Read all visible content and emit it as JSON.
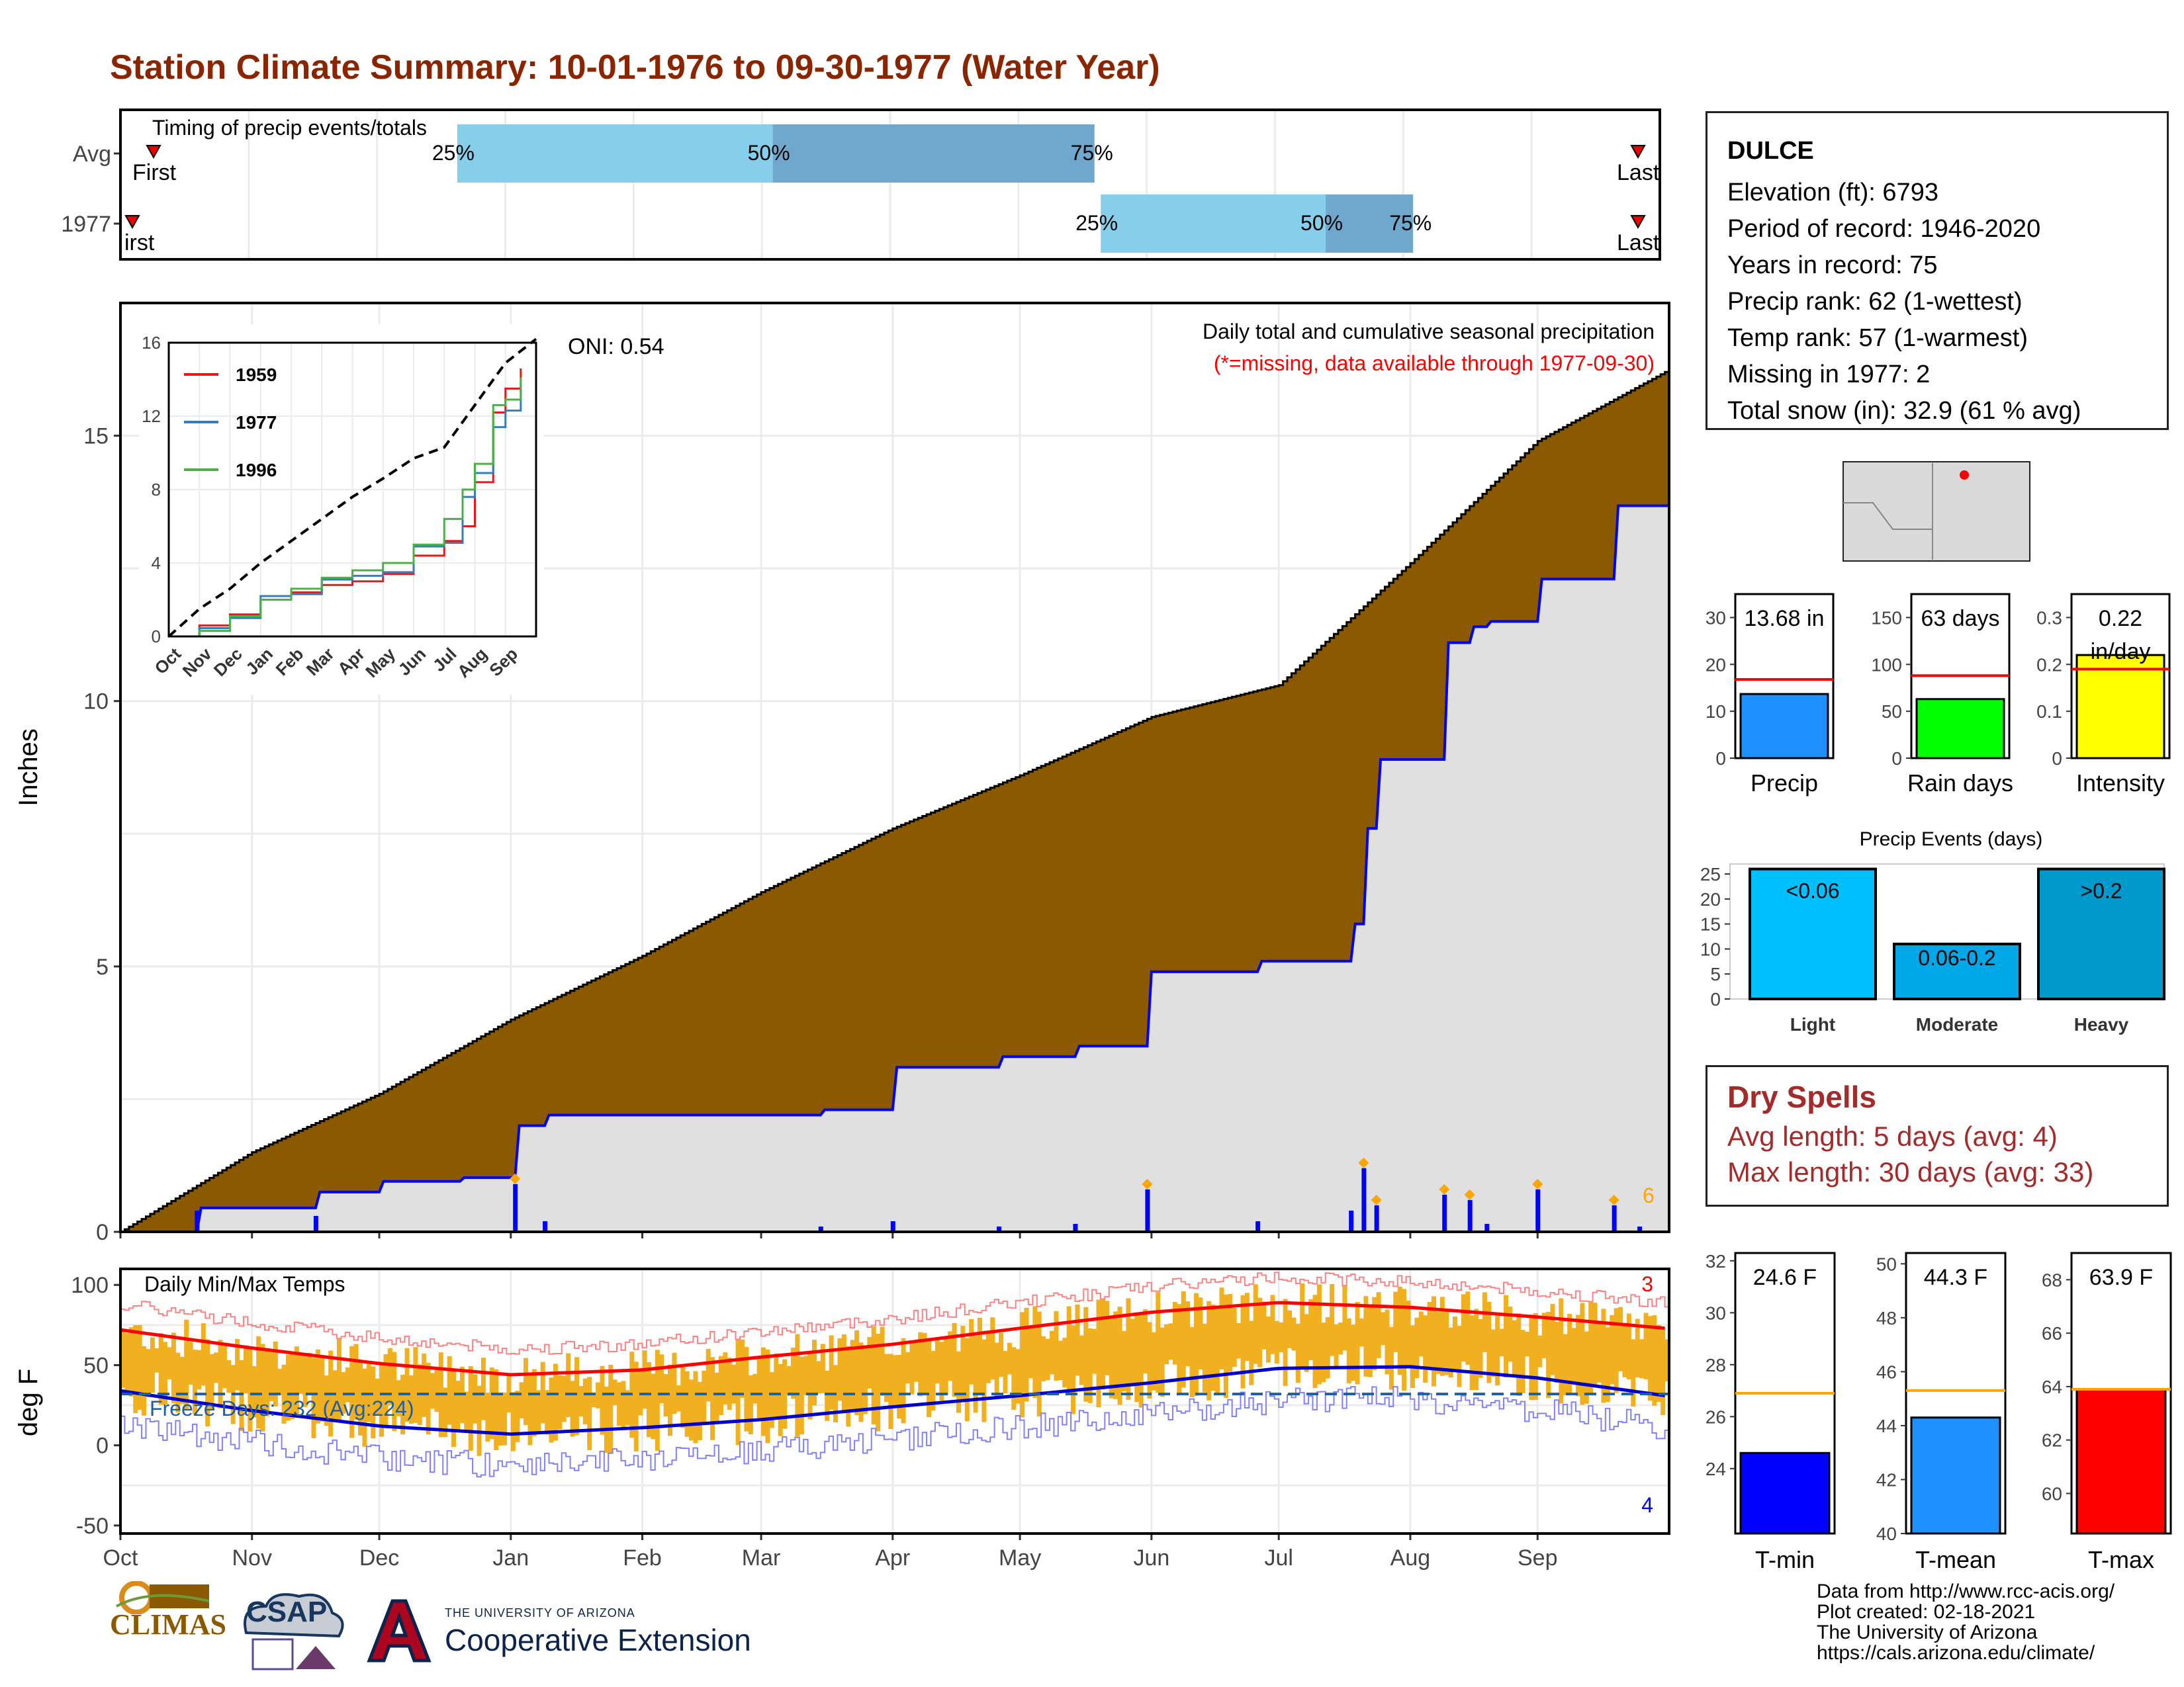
{
  "title": "Station Climate Summary: 10-01-1976 to 09-30-1977 (Water Year)",
  "colors": {
    "title": "#8b2500",
    "cum_avg_fill": "#8B5A00",
    "cum_year_fill": "#e0e0e0",
    "cum_year_line": "#0000ff",
    "daily_bar": "#0000ff",
    "temp_bar": "#f0b020",
    "tmax_avg": "#ff0000",
    "tmin_avg": "#0000cc",
    "timing_light": "#87CEEB",
    "timing_dark": "#6fa8cc",
    "dry_text": "#a52a2a"
  },
  "station": {
    "name": "DULCE",
    "elevation": "Elevation (ft): 6793",
    "period": "Period of record: 1946-2020",
    "years": "Years in record: 75",
    "precip_rank": "Precip rank: 62 (1-wettest)",
    "temp_rank": "Temp rank: 57 (1-warmest)",
    "missing": "Missing in 1977: 2",
    "snow": "Total snow (in): 32.9 (61 % avg)"
  },
  "dry_spells": {
    "title": "Dry Spells",
    "avg": "Avg length: 5 days (avg: 4)",
    "max": "Max length: 30 days (avg: 33)"
  },
  "credits": [
    "Data from http://www.rcc-acis.org/",
    "Plot created: 02-18-2021",
    "The University of Arizona",
    "https://cals.arizona.edu/climate/"
  ],
  "logos": {
    "climas": "CLIMAS",
    "csap": "CSAP",
    "ua_small": "THE UNIVERSITY OF ARIZONA",
    "ua_big": "Cooperative Extension"
  },
  "chart_data": [
    {
      "id": "timing",
      "type": "bar",
      "title": "Timing of precip events/totals",
      "categories": [
        "Avg",
        "1977"
      ],
      "rows": [
        {
          "label": "Avg",
          "first": 0.08,
          "p25": 1.04,
          "p50": 2.05,
          "p75": 3.08,
          "last": 3.95
        },
        {
          "label": "1977",
          "first": 0.0,
          "p25": 3.1,
          "p50": 3.82,
          "p75": 4.1,
          "last": 3.95
        }
      ],
      "marker_labels": {
        "first": "First",
        "first_1977": "irst",
        "last": "Last",
        "p25": "25%",
        "p50": "50%",
        "p75": "75%"
      }
    },
    {
      "id": "cumulative",
      "type": "area",
      "ylabel": "Inches",
      "ylim": [
        0,
        17.5
      ],
      "yticks": [
        0,
        5,
        10,
        15
      ],
      "months": [
        "Oct",
        "Nov",
        "Dec",
        "Jan",
        "Feb",
        "Mar",
        "Apr",
        "May",
        "Jun",
        "Jul",
        "Aug",
        "Sep"
      ],
      "annotation_title": "Daily total and cumulative seasonal precipitation",
      "annotation_missing": "(*=missing, data available through 1977-09-30)",
      "oni": "ONI: 0.54",
      "corner_label": "6",
      "avg_cumulative": {
        "day": [
          0,
          31,
          61,
          92,
          123,
          151,
          182,
          212,
          243,
          273,
          304,
          334,
          364
        ],
        "value": [
          0,
          1.5,
          2.6,
          4.0,
          5.2,
          6.4,
          7.6,
          8.6,
          9.7,
          10.3,
          12.6,
          14.9,
          16.2
        ]
      },
      "year_cumulative": {
        "day": [
          0,
          18,
          19,
          46,
          47,
          61,
          62,
          80,
          81,
          93,
          94,
          100,
          101,
          165,
          166,
          182,
          183,
          207,
          208,
          225,
          226,
          242,
          243,
          268,
          269,
          290,
          291,
          293,
          294,
          296,
          297,
          312,
          313,
          318,
          319,
          322,
          323,
          334,
          335,
          352,
          353,
          364
        ],
        "value": [
          0,
          0,
          0.45,
          0.45,
          0.75,
          0.75,
          0.95,
          0.95,
          1.02,
          1.02,
          2.0,
          2.0,
          2.2,
          2.2,
          2.3,
          2.3,
          3.1,
          3.1,
          3.3,
          3.3,
          3.5,
          3.5,
          4.9,
          4.9,
          5.1,
          5.1,
          5.8,
          5.8,
          7.6,
          7.6,
          8.9,
          8.9,
          11.1,
          11.1,
          11.4,
          11.4,
          11.5,
          11.5,
          12.3,
          12.3,
          13.68,
          13.68
        ]
      },
      "daily": [
        {
          "day": 18,
          "value": 0.4
        },
        {
          "day": 46,
          "value": 0.3
        },
        {
          "day": 93,
          "value": 0.9
        },
        {
          "day": 100,
          "value": 0.2
        },
        {
          "day": 165,
          "value": 0.1
        },
        {
          "day": 182,
          "value": 0.2
        },
        {
          "day": 207,
          "value": 0.1
        },
        {
          "day": 225,
          "value": 0.15
        },
        {
          "day": 242,
          "value": 0.8
        },
        {
          "day": 268,
          "value": 0.2
        },
        {
          "day": 290,
          "value": 0.4
        },
        {
          "day": 293,
          "value": 1.2
        },
        {
          "day": 296,
          "value": 0.5
        },
        {
          "day": 312,
          "value": 0.7
        },
        {
          "day": 318,
          "value": 0.6
        },
        {
          "day": 322,
          "value": 0.15
        },
        {
          "day": 334,
          "value": 0.8
        },
        {
          "day": 352,
          "value": 0.5
        },
        {
          "day": 358,
          "value": 0.1
        }
      ]
    },
    {
      "id": "inset",
      "type": "line",
      "ylim": [
        0,
        16
      ],
      "yticks": [
        0,
        4,
        8,
        12,
        16
      ],
      "months": [
        "Oct",
        "Nov",
        "Dec",
        "Jan",
        "Feb",
        "Mar",
        "Apr",
        "May",
        "Jun",
        "Jul",
        "Aug",
        "Sep"
      ],
      "series": [
        {
          "name": "1959",
          "color": "#e41a1c",
          "x": [
            0,
            1,
            2,
            3,
            4,
            5,
            6,
            7,
            8,
            9,
            9.6,
            10,
            10.6,
            11,
            11.5
          ],
          "y": [
            0,
            0.6,
            1.2,
            2.0,
            2.4,
            2.8,
            3.0,
            3.4,
            4.4,
            5.2,
            6.0,
            8.4,
            12.2,
            13.5,
            14.6
          ]
        },
        {
          "name": "1977",
          "color": "#377eb8",
          "x": [
            0,
            1,
            2,
            3,
            4,
            5,
            6,
            7,
            8,
            9,
            9.6,
            10,
            10.6,
            11,
            11.5
          ],
          "y": [
            0,
            0.45,
            1.0,
            2.2,
            2.3,
            3.1,
            3.3,
            3.5,
            4.9,
            5.1,
            7.6,
            8.9,
            11.4,
            12.3,
            13.7
          ]
        },
        {
          "name": "1996",
          "color": "#4daf4a",
          "x": [
            0,
            1,
            2,
            3,
            4,
            5,
            6,
            7,
            8,
            9,
            9.6,
            10,
            10.6,
            11,
            11.5
          ],
          "y": [
            0,
            0.3,
            1.1,
            2.0,
            2.6,
            3.2,
            3.6,
            4.0,
            5.0,
            6.4,
            8.0,
            9.4,
            12.6,
            12.9,
            14.1
          ]
        },
        {
          "name": "avg",
          "color": "#000000",
          "dashed": true,
          "x": [
            0,
            1,
            2,
            3,
            4,
            5,
            6,
            7,
            8,
            9,
            10,
            11,
            12
          ],
          "y": [
            0,
            1.5,
            2.6,
            4.0,
            5.2,
            6.4,
            7.6,
            8.6,
            9.7,
            10.3,
            12.6,
            14.9,
            16.2
          ]
        }
      ]
    },
    {
      "id": "temps",
      "type": "bar",
      "title": "Daily Min/Max Temps",
      "ylabel": "deg F",
      "ylim": [
        -55,
        110
      ],
      "yticks": [
        -50,
        0,
        50,
        100
      ],
      "months": [
        "Oct",
        "Nov",
        "Dec",
        "Jan",
        "Feb",
        "Mar",
        "Apr",
        "May",
        "Jun",
        "Jul",
        "Aug",
        "Sep"
      ],
      "freeze_label": "Freeze Days: 232 (Avg:224)",
      "freeze_line": 32,
      "top_right_label": "3",
      "bottom_right_label": "4",
      "tmax_avg_anchor": {
        "day": [
          0,
          30,
          61,
          92,
          123,
          151,
          182,
          212,
          243,
          273,
          304,
          334,
          364
        ],
        "value": [
          72,
          61,
          51,
          44,
          47,
          55,
          63,
          73,
          83,
          89,
          86,
          80,
          73
        ]
      },
      "tmin_avg_anchor": {
        "day": [
          0,
          30,
          61,
          92,
          123,
          151,
          182,
          212,
          243,
          273,
          304,
          334,
          364
        ],
        "value": [
          34,
          22,
          12,
          7,
          11,
          16,
          24,
          31,
          39,
          48,
          49,
          42,
          31
        ]
      }
    },
    {
      "id": "precip_summary",
      "type": "bar",
      "panels": [
        {
          "label": "Precip",
          "value_label": "13.68 in",
          "value": 13.68,
          "avg": 16.8,
          "ylim": [
            0,
            35
          ],
          "yticks": [
            0,
            10,
            20,
            30
          ],
          "color": "#1e90ff"
        },
        {
          "label": "Rain days",
          "value_label": "63 days",
          "value": 63,
          "avg": 88,
          "ylim": [
            0,
            175
          ],
          "yticks": [
            0,
            50,
            100,
            150
          ],
          "color": "#00ff00"
        },
        {
          "label": "Intensity",
          "value_label": "0.22",
          "value_label2": "in/day",
          "value": 0.22,
          "avg": 0.19,
          "ylim": [
            0,
            0.35
          ],
          "yticks": [
            0.0,
            0.1,
            0.2,
            0.3
          ],
          "color": "#ffff00"
        }
      ]
    },
    {
      "id": "precip_events",
      "type": "bar",
      "title": "Precip Events (days)",
      "categories": [
        "Light",
        "Moderate",
        "Heavy"
      ],
      "bar_labels": [
        "<0.06",
        "0.06-0.2",
        ">0.2"
      ],
      "values": [
        26,
        11,
        26
      ],
      "ylim": [
        0,
        27
      ],
      "yticks": [
        0,
        5,
        10,
        15,
        20,
        25
      ],
      "colors": [
        "#00bfff",
        "#00a8e8",
        "#0099cc"
      ]
    },
    {
      "id": "temp_summary",
      "type": "bar",
      "panels": [
        {
          "label": "T-min",
          "value_label": "24.6 F",
          "value": 24.6,
          "avg": 26.9,
          "ylim": [
            21.5,
            32.3
          ],
          "yticks": [
            24,
            26,
            28,
            30,
            32
          ],
          "color": "#0000ff"
        },
        {
          "label": "T-mean",
          "value_label": "44.3 F",
          "value": 44.3,
          "avg": 45.3,
          "ylim": [
            40,
            50.4
          ],
          "yticks": [
            40,
            42,
            44,
            46,
            48,
            50
          ],
          "color": "#1e90ff"
        },
        {
          "label": "T-max",
          "value_label": "63.9 F",
          "value": 63.9,
          "avg": 63.9,
          "ylim": [
            58.5,
            69
          ],
          "yticks": [
            60,
            62,
            64,
            66,
            68
          ],
          "color": "#ff0000"
        }
      ]
    }
  ]
}
